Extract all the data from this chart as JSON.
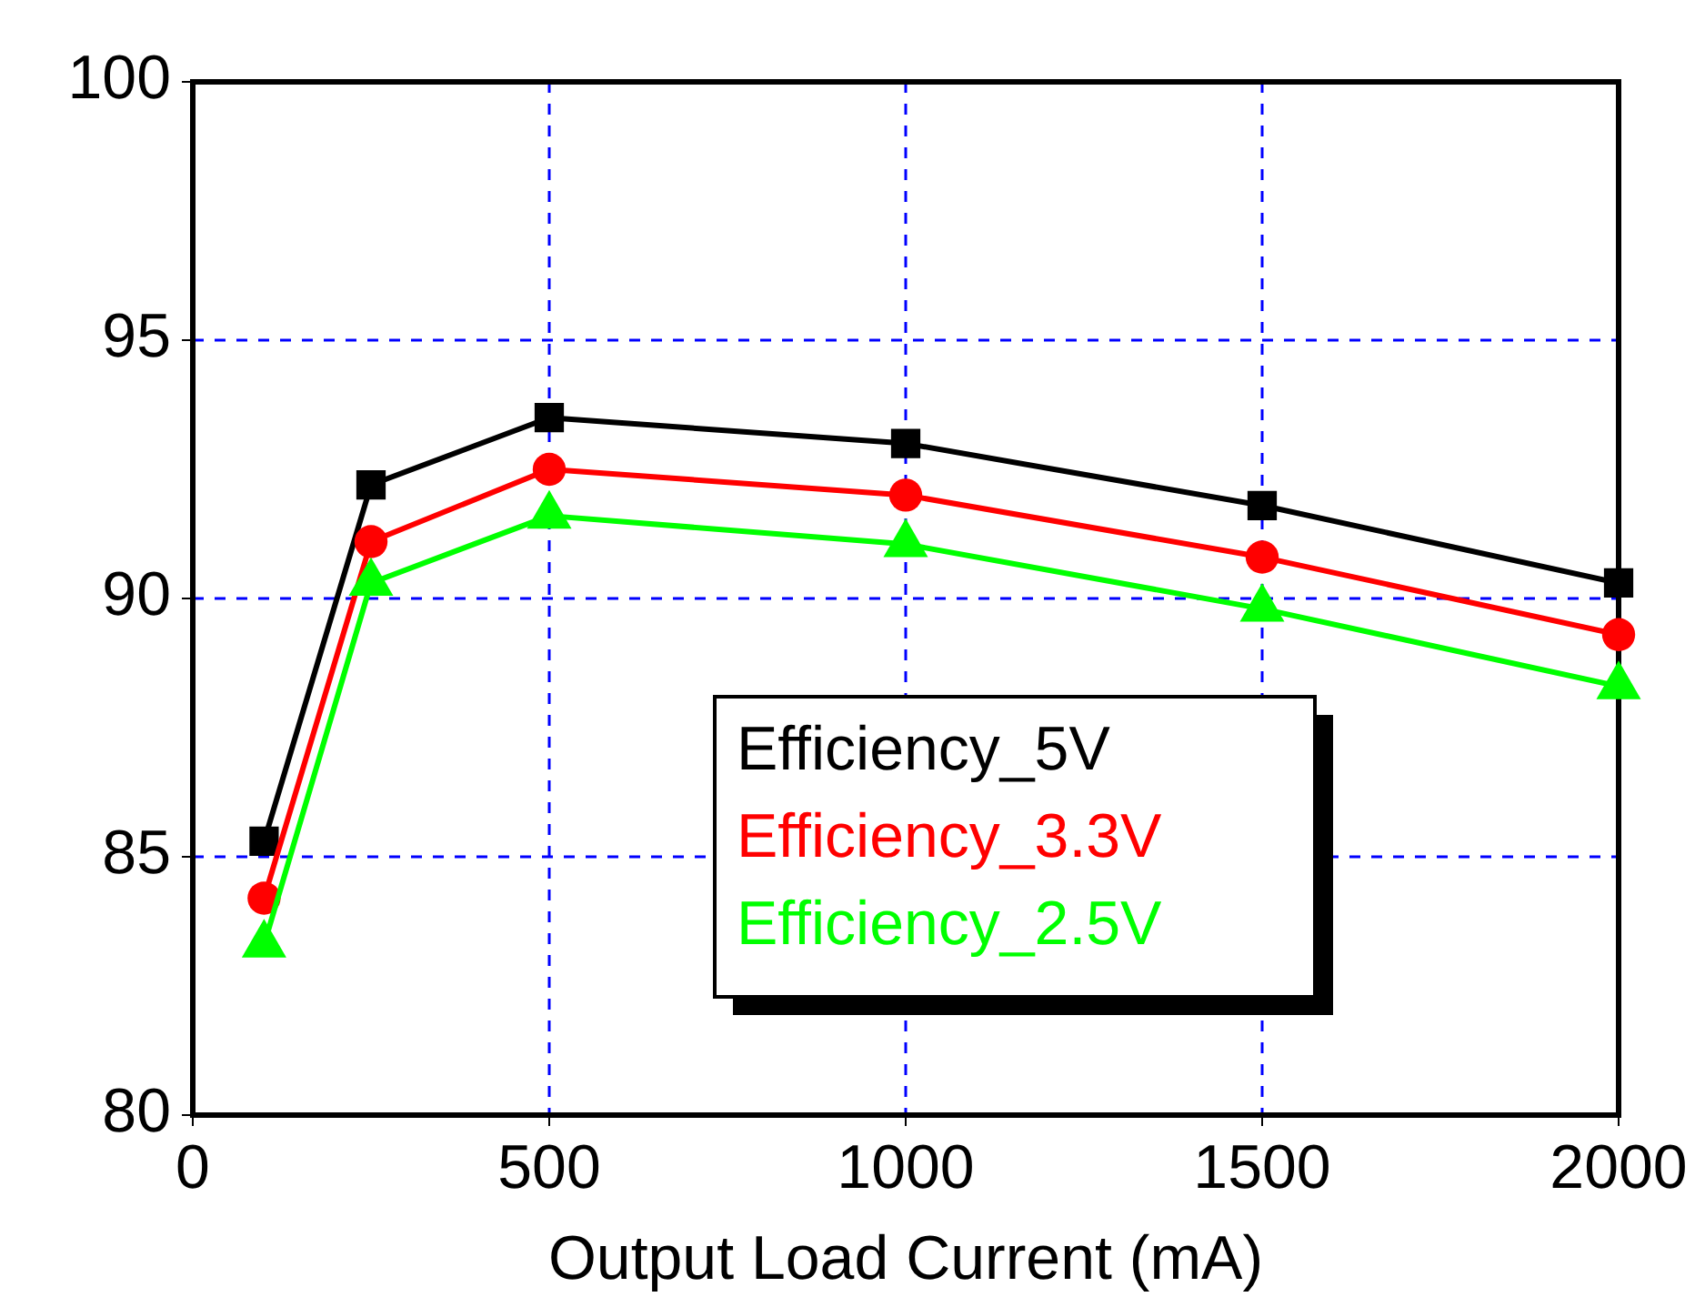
{
  "chart_data": {
    "type": "line",
    "xlabel": "Output Load Current (mA)",
    "x": [
      100,
      250,
      500,
      1000,
      1500,
      2000
    ],
    "xlim": [
      0,
      2000
    ],
    "xticks": [
      0,
      500,
      1000,
      1500,
      2000
    ],
    "ylim": [
      80,
      100
    ],
    "yticks": [
      80,
      85,
      90,
      95,
      100
    ],
    "grid": true,
    "legend": "bottom",
    "series": [
      {
        "name": "Efficiency_5V",
        "color": "#000000",
        "marker": "square",
        "values": [
          85.3,
          92.2,
          93.5,
          93.0,
          91.8,
          90.3
        ]
      },
      {
        "name": "Efficiency_3.3V",
        "color": "#ff0000",
        "marker": "circle",
        "values": [
          84.2,
          91.1,
          92.5,
          92.0,
          90.8,
          89.3
        ]
      },
      {
        "name": "Efficiency_2.5V",
        "color": "#00ff00",
        "marker": "triangle",
        "values": [
          83.3,
          90.3,
          91.6,
          91.05,
          89.8,
          88.3
        ]
      }
    ]
  }
}
